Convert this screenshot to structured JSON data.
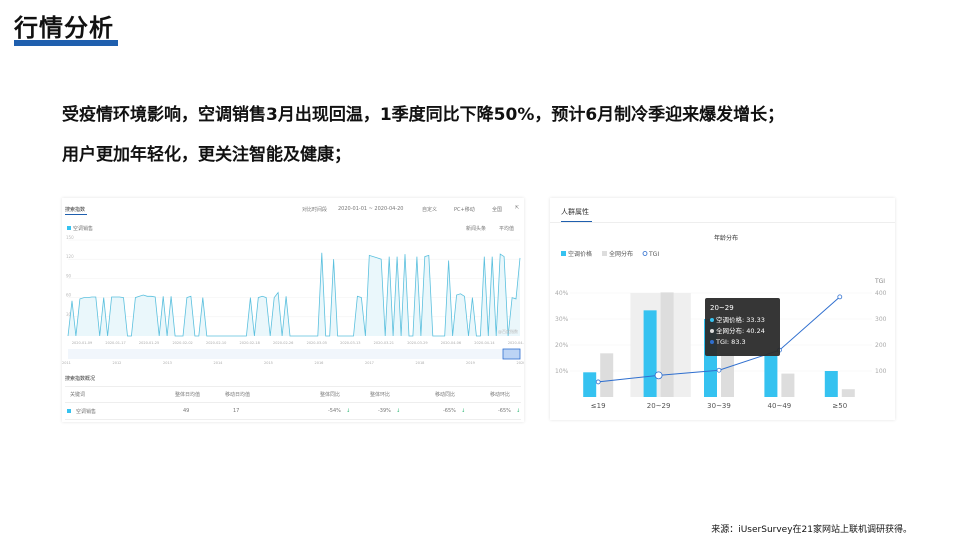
{
  "slide": {
    "title": "行情分析",
    "line1": "受疫情环境影响，空调销售3月出现回温，1季度同比下降50%，预计6月制冷季迎来爆发增长；",
    "line2": "用户更加年轻化，更关注智能及健康；",
    "source": "来源：iUserSurvey在21家网站上联机调研获得。",
    "accent": "#1f5fae"
  },
  "search_panel": {
    "tab": "搜索指数",
    "compare": "对比时间段",
    "date_range": "2020-01-01 ~ 2020-04-20",
    "mode": "自定义",
    "device": "PC+移动",
    "region": "全国",
    "legend": "空调销售",
    "news": "新闻头条",
    "avg": "平均值",
    "watermark": "@百度指数",
    "yticks": [
      "150",
      "120",
      "90",
      "60",
      "30"
    ],
    "xticks": [
      "2020-01-09",
      "2020-01-17",
      "2020-01-25",
      "2020-02-02",
      "2020-02-10",
      "2020-02-18",
      "2020-02-26",
      "2020-03-05",
      "2020-03-13",
      "2020-03-21",
      "2020-03-29",
      "2020-04-06",
      "2020-04-14",
      "2020-04-20"
    ],
    "years": [
      "2011",
      "2012",
      "2013",
      "2014",
      "2015",
      "2016",
      "2017",
      "2018",
      "2019",
      "2020"
    ],
    "summary_title": "搜索指数概况",
    "headers": [
      "关键词",
      "整体日均值",
      "移动日均值",
      "整体同比",
      "整体环比",
      "移动同比",
      "移动环比"
    ],
    "row": [
      "空调销售",
      "49",
      "17",
      "-54%",
      "-39%",
      "-65%",
      "-65%"
    ],
    "line_color": "#5bc0de"
  },
  "chart_data": [
    {
      "type": "line",
      "series": [
        {
          "name": "空调销售",
          "values": [
            0,
            55,
            0,
            58,
            60,
            60,
            61,
            61,
            0,
            60,
            0,
            61,
            61,
            61,
            60,
            0,
            0,
            60,
            62,
            64,
            62,
            62,
            61,
            0,
            62,
            0,
            62,
            0,
            0,
            0,
            60,
            62,
            0,
            0,
            60,
            0,
            0,
            0,
            0,
            0,
            0,
            0,
            0,
            0,
            0,
            0,
            60,
            0,
            60,
            62,
            60,
            0,
            60,
            68,
            0,
            62,
            0,
            0,
            0,
            0,
            0,
            0,
            0,
            0,
            130,
            0,
            0,
            120,
            0,
            0,
            0,
            0,
            0,
            62,
            60,
            0,
            126,
            124,
            122,
            120,
            0,
            124,
            0,
            124,
            0,
            128,
            0,
            0,
            124,
            0,
            124,
            126,
            0,
            0,
            0,
            0,
            118,
            0,
            64,
            66,
            62,
            0,
            60,
            0,
            0,
            124,
            0,
            124,
            0,
            128,
            124,
            0,
            60,
            58,
            122
          ]
        }
      ],
      "ylim": [
        0,
        150
      ]
    },
    {
      "type": "bar",
      "title": "年龄分布",
      "categories": [
        "≤19",
        "20~29",
        "30~39",
        "40~49",
        "≥50"
      ],
      "series": [
        {
          "name": "空调价格",
          "values": [
            9.5,
            33.33,
            30,
            15.8,
            10
          ]
        },
        {
          "name": "全网分布",
          "values": [
            16.8,
            40.24,
            17,
            9,
            3
          ]
        },
        {
          "name": "TGI",
          "type": "line",
          "values": [
            58,
            83.3,
            103,
            180,
            385
          ]
        }
      ],
      "ylim": [
        0,
        40
      ],
      "y2lim": [
        0,
        400
      ],
      "yticks": [
        "10%",
        "20%",
        "30%",
        "40%"
      ],
      "y2ticks": [
        "100",
        "200",
        "300",
        "400"
      ],
      "y2label": "TGI",
      "tooltip": {
        "title": "20~29",
        "items": [
          "空调价格: 33.33",
          "全网分布: 40.24",
          "TGI: 83.3"
        ]
      },
      "colors": {
        "a": "#35c2f0",
        "b": "#dddddd",
        "tgi": "#2f6fcf"
      }
    }
  ],
  "crowd_panel": {
    "tab": "人群属性"
  }
}
